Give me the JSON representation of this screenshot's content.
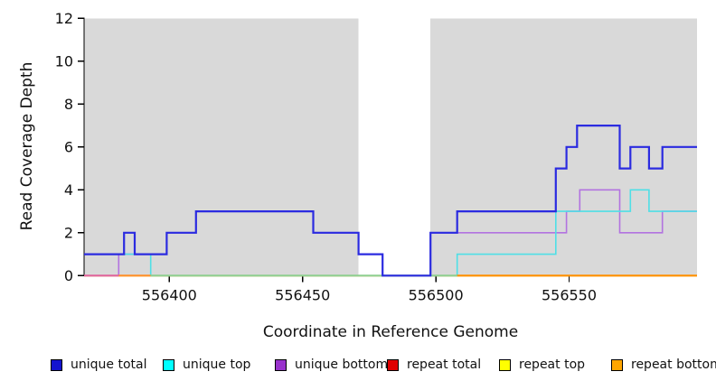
{
  "chart_data": {
    "type": "line",
    "subtype": "step-coverage",
    "title": "",
    "xlabel": "Coordinate in Reference Genome",
    "ylabel": "Read Coverage Depth",
    "xlim": [
      556368,
      556598
    ],
    "ylim": [
      0,
      12
    ],
    "x_ticks": [
      556400,
      556450,
      556500,
      556550
    ],
    "x_tick_labels": [
      "556400",
      "556450",
      "556500",
      "556550"
    ],
    "y_ticks": [
      0,
      2,
      4,
      6,
      8,
      10,
      12
    ],
    "y_tick_labels": [
      "0",
      "2",
      "4",
      "6",
      "8",
      "10",
      "12"
    ],
    "grid": "off",
    "background_shading": {
      "color": "#d9d9d9",
      "regions": [
        [
          556368,
          556471
        ],
        [
          556498,
          556598
        ]
      ]
    },
    "series": [
      {
        "name": "repeat total",
        "line_color": "#e02020",
        "width": 1.6,
        "steps": [
          [
            556368,
            0
          ]
        ]
      },
      {
        "name": "repeat top",
        "line_color": "#f5f500",
        "width": 1.6,
        "steps": [
          [
            556368,
            0
          ]
        ]
      },
      {
        "name": "repeat bottom",
        "line_color": "#ff9000",
        "width": 1.6,
        "steps": [
          [
            556368,
            0
          ]
        ]
      },
      {
        "name": "unique bottom",
        "line_color": "#b273e0",
        "width": 1.6,
        "steps": [
          [
            556368,
            0
          ],
          [
            556381,
            1
          ],
          [
            556399,
            2
          ],
          [
            556410,
            3
          ],
          [
            556454,
            2
          ],
          [
            556471,
            1
          ],
          [
            556480,
            0
          ],
          [
            556498,
            2
          ],
          [
            556549,
            3
          ],
          [
            556554,
            4
          ],
          [
            556569,
            2
          ],
          [
            556585,
            3
          ]
        ]
      },
      {
        "name": "unique top",
        "line_color": "#4fdfe6",
        "width": 1.6,
        "steps": [
          [
            556368,
            1
          ],
          [
            556393,
            0
          ],
          [
            556508,
            1
          ],
          [
            556545,
            3
          ],
          [
            556573,
            4
          ],
          [
            556580,
            3
          ]
        ]
      },
      {
        "name": "unique total",
        "line_color": "#2b2be0",
        "width": 2.2,
        "steps": [
          [
            556368,
            1
          ],
          [
            556383,
            2
          ],
          [
            556387,
            1
          ],
          [
            556399,
            2
          ],
          [
            556410,
            3
          ],
          [
            556454,
            2
          ],
          [
            556471,
            1
          ],
          [
            556480,
            0
          ],
          [
            556498,
            2
          ],
          [
            556508,
            3
          ],
          [
            556545,
            5
          ],
          [
            556549,
            6
          ],
          [
            556553,
            7
          ],
          [
            556569,
            5
          ],
          [
            556573,
            6
          ],
          [
            556580,
            5
          ],
          [
            556585,
            6
          ]
        ]
      }
    ],
    "zero_line_overlap_segments": [
      {
        "x0": 556368,
        "x1": 556381,
        "color": "#e0649c"
      },
      {
        "x0": 556381,
        "x1": 556393,
        "color": "#ff9028"
      },
      {
        "x0": 556393,
        "x1": 556508,
        "color": "#8fcf90"
      },
      {
        "x0": 556508,
        "x1": 556598,
        "color": "#ff9000"
      }
    ],
    "legend": [
      {
        "label": "unique total",
        "color": "#1414cf"
      },
      {
        "label": "unique top",
        "color": "#00ffff"
      },
      {
        "label": "unique bottom",
        "color": "#9932cc"
      },
      {
        "label": "repeat total",
        "color": "#e00000"
      },
      {
        "label": "repeat top",
        "color": "#ffff00"
      },
      {
        "label": "repeat bottom",
        "color": "#ffa500"
      }
    ],
    "legend_position": "bottom",
    "axis_color": "#000000",
    "text_color": "#111111"
  }
}
